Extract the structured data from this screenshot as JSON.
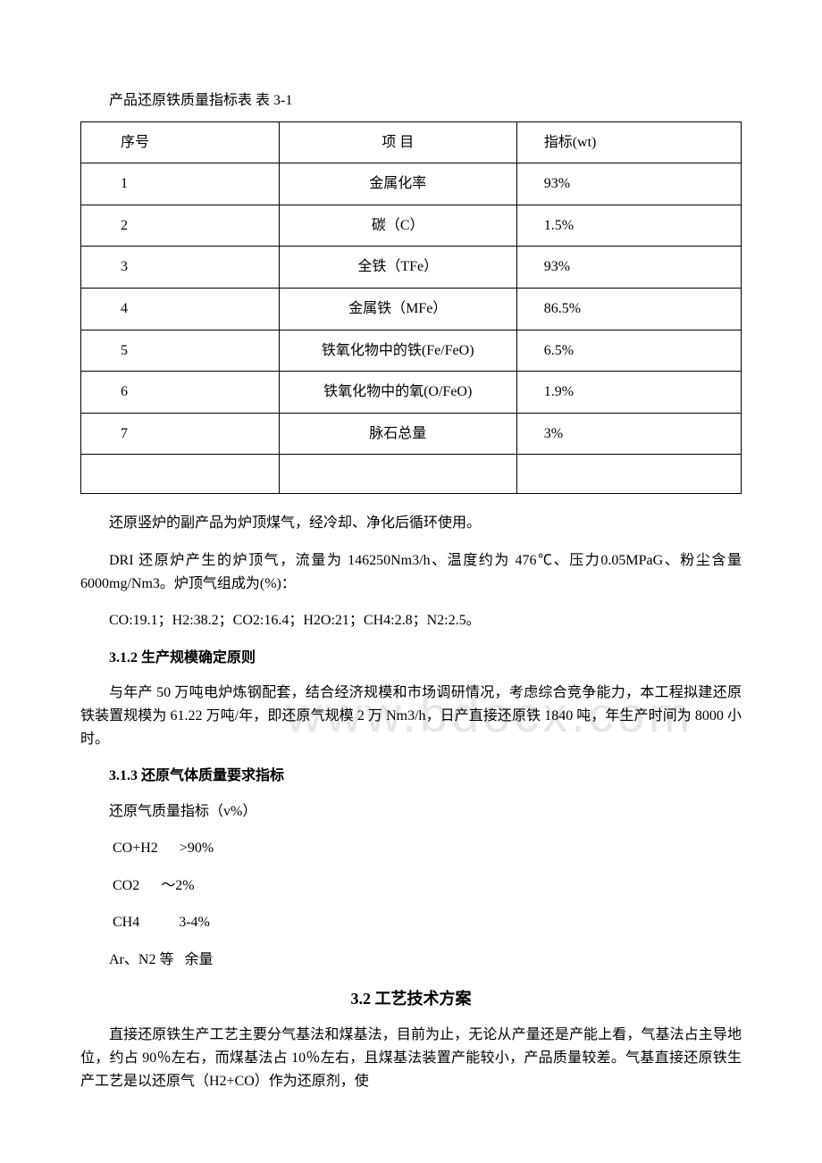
{
  "caption": "产品还原铁质量指标表 表 3-1",
  "table": {
    "header": {
      "c1": "序号",
      "c2": "项 目",
      "c3": "指标(wt)"
    },
    "rows": [
      {
        "c1": "1",
        "c2": "金属化率",
        "c3": "93%"
      },
      {
        "c1": "2",
        "c2": "碳（C）",
        "c3": "1.5%"
      },
      {
        "c1": "3",
        "c2": "全铁（TFe）",
        "c3": "93%"
      },
      {
        "c1": "4",
        "c2": "金属铁（MFe）",
        "c3": "86.5%"
      },
      {
        "c1": "5",
        "c2": "铁氧化物中的铁(Fe/FeO)",
        "c3": "6.5%"
      },
      {
        "c1": "6",
        "c2": "铁氧化物中的氧(O/FeO)",
        "c3": "1.9%"
      },
      {
        "c1": "7",
        "c2": "脉石总量",
        "c3": "3%"
      },
      {
        "c1": "",
        "c2": "",
        "c3": ""
      }
    ]
  },
  "p1": "还原竖炉的副产品为炉顶煤气，经冷却、净化后循环使用。",
  "p2": "DRI 还原炉产生的炉顶气，流量为 146250Nm3/h、温度约为 476℃、压力0.05MPaG、粉尘含量 6000mg/Nm3。炉顶气组成为(%)：",
  "p3": "CO:19.1；H2:38.2；CO2:16.4；H2O:21；CH4:2.8；N2:2.5。",
  "h312": "3.1.2 生产规模确定原则",
  "p4": "与年产 50 万吨电炉炼钢配套，结合经济规模和市场调研情况，考虑综合竞争能力，本工程拟建还原铁装置规模为 61.22 万吨/年，即还原气规模 2 万 Nm3/h，日产直接还原铁 1840 吨，年生产时间为 8000 小时。",
  "h313": "3.1.3 还原气体质量要求指标",
  "p5": "还原气质量指标（v%）",
  "spec1": " CO+H2      >90%",
  "spec2": " CO2      ～2%",
  "spec3": " CH4           3-4%",
  "spec4": "Ar、N2 等   余量",
  "h32": "3.2 工艺技术方案",
  "p6": "直接还原铁生产工艺主要分气基法和煤基法，目前为止，无论从产量还是产能上看，气基法占主导地位，约占 90％左右，而煤基法占 10％左右，且煤基法装置产能较小，产品质量较差。气基直接还原铁生产工艺是以还原气（H2+CO）作为还原剂，使",
  "watermark": "www.bdocx.com"
}
